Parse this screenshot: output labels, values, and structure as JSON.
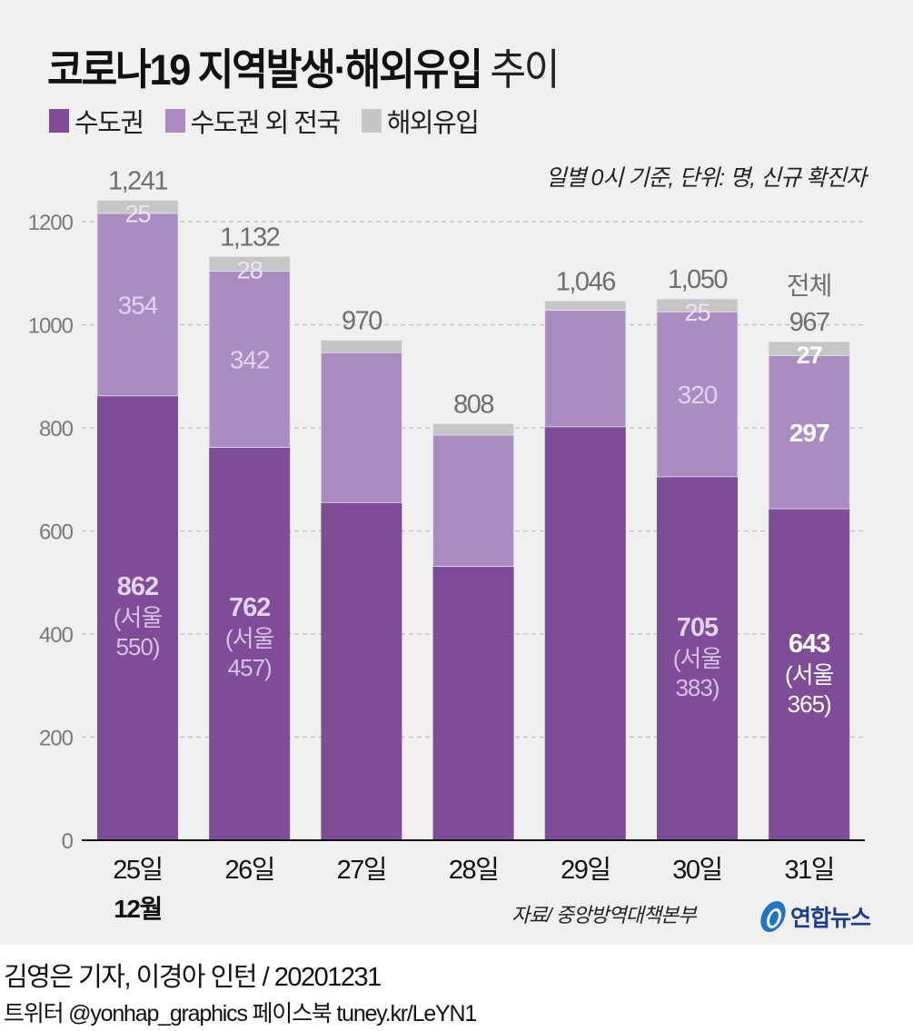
{
  "header": {
    "title_bold": "코로나19 지역발생·해외유입",
    "title_light": "추이",
    "note": "일별 0시 기준, 단위: 명, 신규 확진자"
  },
  "legend": [
    {
      "label": "수도권",
      "color": "#7f4d97"
    },
    {
      "label": "수도권 외 전국",
      "color": "#ab8cc2"
    },
    {
      "label": "해외유입",
      "color": "#c6c6c6"
    }
  ],
  "chart_data": {
    "type": "bar",
    "stacked": true,
    "title": "코로나19 지역발생·해외유입 추이",
    "subtitle": "일별 0시 기준, 단위: 명, 신규 확진자",
    "xlabel": "",
    "ylabel": "",
    "month_label": "12월",
    "categories": [
      "25일",
      "26일",
      "27일",
      "28일",
      "29일",
      "30일",
      "31일"
    ],
    "ylim": [
      0,
      1200
    ],
    "yticks": [
      0,
      200,
      400,
      600,
      800,
      1000,
      1200
    ],
    "grid": true,
    "legend_position": "top-left",
    "series": [
      {
        "name": "수도권",
        "color": "#7f4d97",
        "values": [
          862,
          762,
          655,
          531,
          802,
          705,
          643
        ]
      },
      {
        "name": "수도권 외 전국",
        "color": "#ab8cc2",
        "values": [
          354,
          342,
          291,
          255,
          226,
          320,
          297
        ]
      },
      {
        "name": "해외유입",
        "color": "#c6c6c6",
        "values": [
          25,
          28,
          24,
          22,
          18,
          25,
          27
        ]
      }
    ],
    "totals": [
      1241,
      1132,
      970,
      808,
      1046,
      1050,
      967
    ],
    "total_labels": [
      "1,241",
      "1,132",
      "970",
      "808",
      "1,046",
      "1,050",
      "967"
    ],
    "total_prefix_last": "전체",
    "segment_labels": [
      {
        "capital": "862",
        "seoul": "550",
        "other": "354",
        "imported": "25"
      },
      {
        "capital": "762",
        "seoul": "457",
        "other": "342",
        "imported": "28"
      },
      null,
      null,
      null,
      {
        "capital": "705",
        "seoul": "383",
        "other": "320",
        "imported": "25"
      },
      {
        "capital": "643",
        "seoul": "365",
        "other": "297",
        "imported": "27"
      }
    ],
    "seoul_prefix": "(서울",
    "seoul_suffix": ")"
  },
  "footer": {
    "source": "자료/ 중앙방역대책본부",
    "logo": "연합뉴스",
    "credit": "김영은 기자, 이경아 인턴 / 20201231",
    "social": "트위터 @yonhap_graphics  페이스북 tuney.kr/LeYN1"
  }
}
